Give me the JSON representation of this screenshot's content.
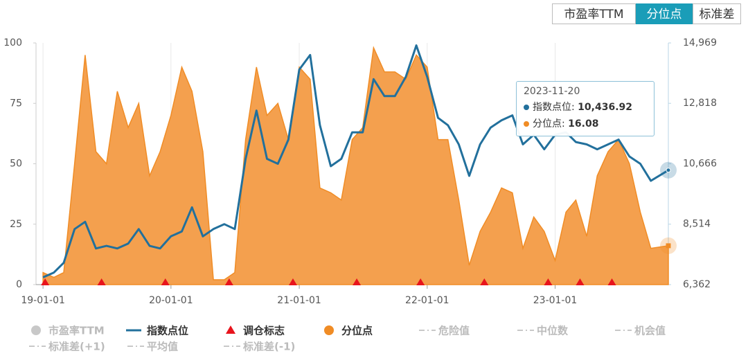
{
  "tabs": {
    "items": [
      "市盈率TTM",
      "分位点",
      "标准差"
    ],
    "active": 1
  },
  "chart_data": {
    "type": "combo",
    "x": [
      "19-01-01",
      "19-02-01",
      "19-03-01",
      "19-04-01",
      "19-05-01",
      "19-06-01",
      "19-07-01",
      "19-08-01",
      "19-09-01",
      "19-10-01",
      "19-11-01",
      "19-12-01",
      "20-01-01",
      "20-02-01",
      "20-03-01",
      "20-04-01",
      "20-05-01",
      "20-06-01",
      "20-07-01",
      "20-08-01",
      "20-09-01",
      "20-10-01",
      "20-11-01",
      "20-12-01",
      "21-01-01",
      "21-02-01",
      "21-03-01",
      "21-04-01",
      "21-05-01",
      "21-06-01",
      "21-07-01",
      "21-08-01",
      "21-09-01",
      "21-10-01",
      "21-11-01",
      "21-12-01",
      "22-01-01",
      "22-02-01",
      "22-03-01",
      "22-04-01",
      "22-05-01",
      "22-06-01",
      "22-07-01",
      "22-08-01",
      "22-09-01",
      "22-10-01",
      "22-11-01",
      "22-12-01",
      "23-01-01",
      "23-02-01",
      "23-03-01",
      "23-04-01",
      "23-05-01",
      "23-06-01",
      "23-07-01",
      "23-08-01",
      "23-09-01",
      "23-10-01",
      "23-11-20"
    ],
    "series": [
      {
        "name": "分位点",
        "type": "area",
        "axis": "y",
        "color": "#f08c25",
        "fill": "#f4a04e",
        "values": [
          5,
          3,
          5,
          50,
          95,
          55,
          50,
          80,
          65,
          75,
          45,
          55,
          70,
          90,
          80,
          55,
          2,
          2,
          5,
          60,
          90,
          70,
          75,
          60,
          90,
          85,
          40,
          38,
          35,
          60,
          65,
          98,
          88,
          88,
          85,
          95,
          90,
          60,
          60,
          35,
          8,
          22,
          30,
          40,
          38,
          15,
          28,
          22,
          10,
          30,
          35,
          20,
          45,
          55,
          60,
          50,
          30,
          15,
          16.08
        ]
      },
      {
        "name": "指数点位",
        "type": "line",
        "axis": "y2",
        "color": "#22709c",
        "values": [
          6620,
          6790,
          7140,
          8340,
          8600,
          7650,
          7740,
          7650,
          7825,
          8340,
          7740,
          7650,
          8080,
          8255,
          9115,
          8080,
          8340,
          8515,
          8340,
          10840,
          12560,
          10840,
          10665,
          11525,
          14020,
          14540,
          12040,
          10580,
          10840,
          11785,
          11785,
          13680,
          13075,
          13075,
          13760,
          14880,
          13760,
          12300,
          12040,
          11355,
          10235,
          11355,
          11955,
          12215,
          12390,
          11355,
          11700,
          11180,
          11700,
          11785,
          11440,
          11355,
          11180,
          11355,
          11525,
          10925,
          10665,
          10060,
          10436.92
        ]
      }
    ],
    "markers": {
      "name": "调仓标志",
      "color": "#e8141c",
      "x": [
        "19-01-07",
        "19-06-17",
        "19-12-16",
        "20-06-15",
        "20-12-14",
        "21-06-14",
        "21-12-13",
        "22-06-13",
        "22-12-12",
        "23-03-13",
        "23-06-12"
      ]
    },
    "inactive_legend": [
      "市盈率TTM",
      "危险值",
      "中位数",
      "机会值",
      "标准差(+1)",
      "平均值",
      "标准差(-1)"
    ],
    "xlim": [
      "18-12-12",
      "23-11-20"
    ],
    "xticks": [
      "19-01-01",
      "20-01-01",
      "21-01-01",
      "22-01-01",
      "23-01-01"
    ],
    "ylim": [
      0,
      100
    ],
    "yticks": [
      0,
      25,
      50,
      75,
      100
    ],
    "y2lim": [
      6362,
      14969
    ],
    "y2ticks": [
      {
        "value": 6362,
        "label": "6,362"
      },
      {
        "value": 8514,
        "label": "8,514"
      },
      {
        "value": 10666,
        "label": "10,666"
      },
      {
        "value": 12818,
        "label": "12,818"
      },
      {
        "value": 14969,
        "label": "14,969"
      }
    ],
    "grid": "x",
    "tooltip": {
      "date": "2023-11-20",
      "rows": [
        {
          "label": "指数点位:",
          "value": "10,436.92",
          "series": 1
        },
        {
          "label": "分位点:",
          "value": "16.08",
          "series": 0
        }
      ]
    }
  }
}
